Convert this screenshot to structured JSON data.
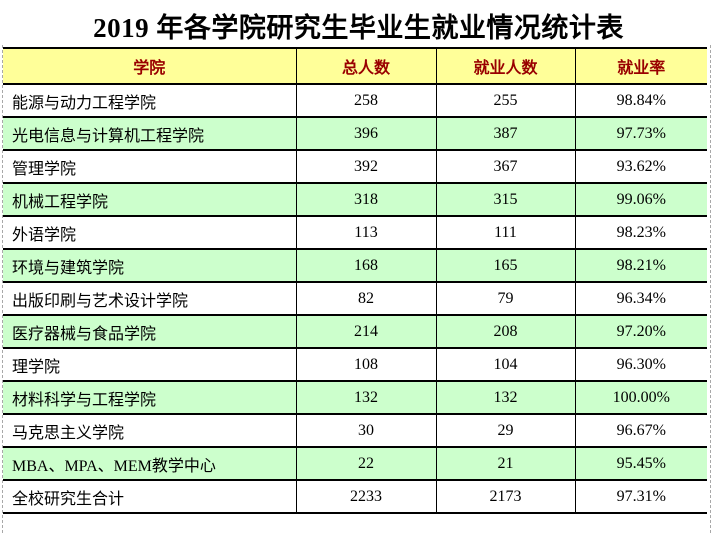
{
  "chart_data": {
    "type": "table",
    "title": "2019 年各学院研究生毕业生就业情况统计表",
    "columns": [
      "学院",
      "总人数",
      "就业人数",
      "就业率"
    ],
    "rows": [
      [
        "能源与动力工程学院",
        "258",
        "255",
        "98.84%"
      ],
      [
        "光电信息与计算机工程学院",
        "396",
        "387",
        "97.73%"
      ],
      [
        "管理学院",
        "392",
        "367",
        "93.62%"
      ],
      [
        "机械工程学院",
        "318",
        "315",
        "99.06%"
      ],
      [
        "外语学院",
        "113",
        "111",
        "98.23%"
      ],
      [
        "环境与建筑学院",
        "168",
        "165",
        "98.21%"
      ],
      [
        "出版印刷与艺术设计学院",
        "82",
        "79",
        "96.34%"
      ],
      [
        "医疗器械与食品学院",
        "214",
        "208",
        "97.20%"
      ],
      [
        "理学院",
        "108",
        "104",
        "96.30%"
      ],
      [
        "材料科学与工程学院",
        "132",
        "132",
        "100.00%"
      ],
      [
        "马克思主义学院",
        "30",
        "29",
        "96.67%"
      ],
      [
        "MBA、MPA、MEM教学中心",
        "22",
        "21",
        "95.45%"
      ],
      [
        "全校研究生合计",
        "2233",
        "2173",
        "97.31%"
      ]
    ],
    "layout": {
      "row_striping": "white / light-green alternating, starting white",
      "grid": "solid black horizontal and vertical cell borders, no outer left/right border",
      "page_break_gridlines": "dashed gray vertical lines at far left and right"
    }
  },
  "colors": {
    "header_bg": "#FFFF99",
    "header_text": "#990000",
    "row_bg": "#FFFFFF",
    "row_alt_bg": "#CCFFCC",
    "border": "#000000",
    "dashed_gridline": "#A8A8A8",
    "title_text": "#000000",
    "cell_text": "#000000"
  }
}
